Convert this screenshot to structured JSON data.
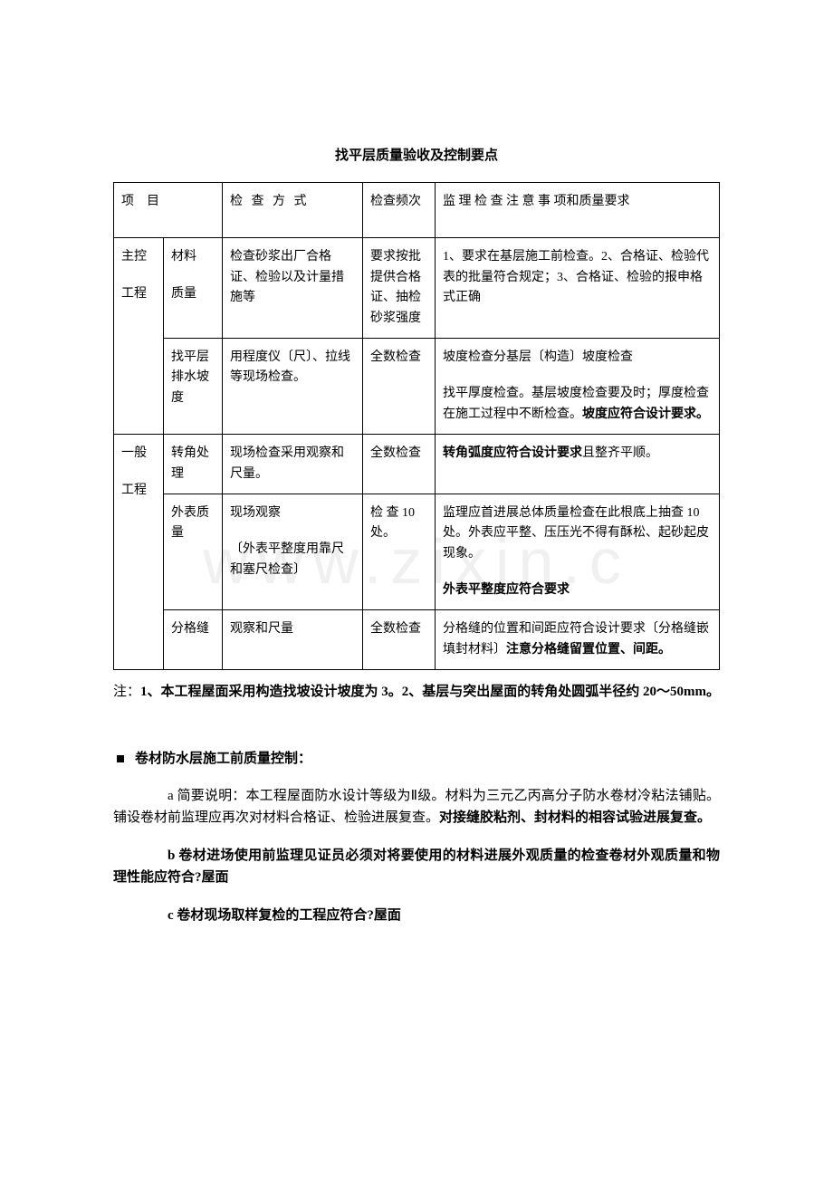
{
  "watermark": "www.zixin.c",
  "title": "找平层质量验收及控制要点",
  "table": {
    "headers": {
      "col1": "项　目",
      "col3": "检 查 方 式",
      "col4": "检查频次",
      "col5": "监 理 检 查 注 意 事 项和质量要求"
    },
    "rows": [
      {
        "cat1": "主控",
        "cat2": "工程",
        "item1": "材料",
        "item2": "质量",
        "method": "检查砂浆出厂合格证、检验以及计量措施等",
        "freq": "要求按批提供合格证、抽检砂浆强度",
        "notes": "1、要求在基层施工前检查。2、合格证、检验代表的批量符合规定；3、合格证、检验的报申格式正确"
      },
      {
        "item": "找平层排水坡度",
        "method": "用程度仪〔尺〕、拉线等现场检查。",
        "freq": "全数检查",
        "notes_p1": "坡度检查分基层〔构造〕坡度检查",
        "notes_p2": "找平厚度检查。基层坡度检查要及时；厚度检查在施工过程中不断检查。",
        "notes_bold": "坡度应符合设计要求。"
      },
      {
        "cat1": "一般",
        "cat2": "工程",
        "item": "转角处理",
        "method": "现场检查采用观察和尺量。",
        "freq": "全数检查",
        "notes_bold": "转角弧度应符合设计要求",
        "notes_rest": "且整齐平顺。"
      },
      {
        "item": "外表质量",
        "method_p1": "现场观察",
        "method_p2": "〔外表平整度用靠尺和塞尺检查〕",
        "freq": "检 查 10处。",
        "notes_p1": "监理应首进展总体质量检查在此根底上抽查 10 处。外表应平整、压压光不得有酥松、起砂起皮现象。",
        "notes_bold": "外表平整度应符合要求"
      },
      {
        "item": "分格缝",
        "method": "观察和尺量",
        "freq": "全数检查",
        "notes_p1": "分格缝的位置和间距应符合设计要求〔分格缝嵌填封材料〕",
        "notes_bold": "注意分格缝留置位置、间距。"
      }
    ]
  },
  "note_label": "注：",
  "note_p1": "1、本工程屋面采用构造找坡设计坡度为 3。2、基层与突出屋面的转角处圆弧半径约 20～50mm。",
  "section_header": "卷材防水层施工前质量控制：",
  "para_a_prefix": "a 简要说明：本工程屋面防水设计等级为Ⅱ级。材料为三元乙丙高分子防水卷材冷粘法铺贴。铺设卷材前监理应再次对材料合格证、检验进展复查。",
  "para_a_bold": "对接缝胶粘剂、封材料的相容试验进展复查。",
  "para_b": "b 卷材进场使用前监理见证员必须对将要使用的材料进展外观质量的检查卷材外观质量和物理性能应符合?屋面",
  "para_c": "c 卷材现场取样复检的工程应符合?屋面"
}
